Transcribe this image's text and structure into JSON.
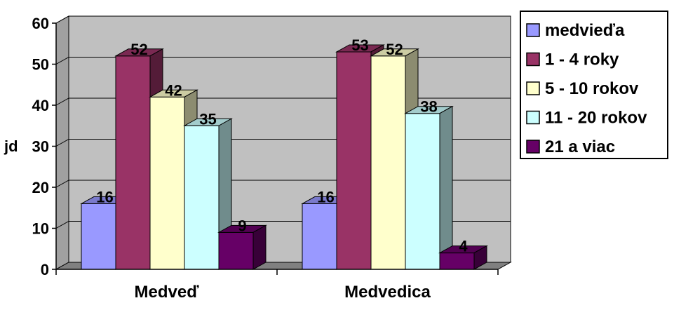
{
  "chart_data": {
    "type": "bar",
    "title": "",
    "xlabel": "",
    "ylabel": "jd",
    "ylim": [
      0,
      60
    ],
    "yticks": [
      0,
      10,
      20,
      30,
      40,
      50,
      60
    ],
    "grid": true,
    "legend_position": "right",
    "categories": [
      "Medveď",
      "Medvedica"
    ],
    "series": [
      {
        "name": "medvieďa",
        "values": [
          16,
          16
        ],
        "color": "#9999ff"
      },
      {
        "name": "1 - 4 roky",
        "values": [
          52,
          53
        ],
        "color": "#993366"
      },
      {
        "name": "5 - 10 rokov",
        "values": [
          42,
          52
        ],
        "color": "#ffffcc"
      },
      {
        "name": "11 - 20 rokov",
        "values": [
          35,
          38
        ],
        "color": "#ccffff"
      },
      {
        "name": "21 a viac",
        "values": [
          9,
          4
        ],
        "color": "#660066"
      }
    ]
  },
  "colors": {
    "plot_background": "#c0c0c0",
    "gridline": "#000000"
  }
}
